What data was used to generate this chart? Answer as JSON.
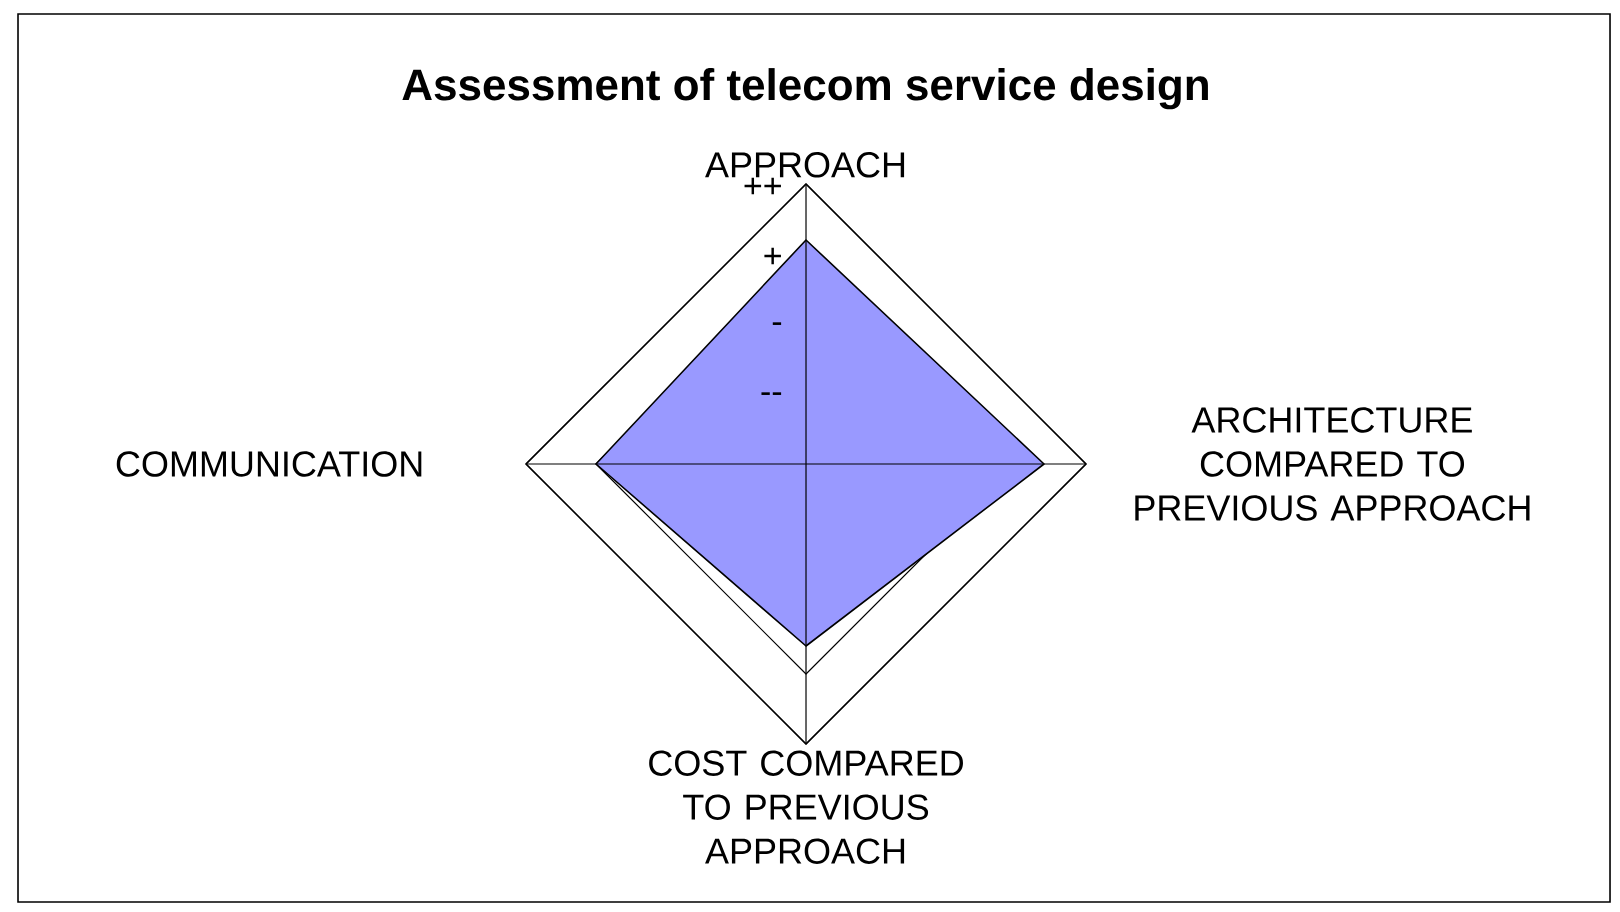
{
  "chart_data": {
    "type": "radar",
    "title": "Assessment of telecom service design",
    "categories": [
      "APPROACH",
      "ARCHITECTURE COMPARED TO PREVIOUS APPROACH",
      "COST COMPARED TO PREVIOUS APPROACH",
      "COMMUNICATION"
    ],
    "series": [
      {
        "color": "#9999ff",
        "values": [
          3.2,
          3.4,
          2.6,
          3.0
        ]
      }
    ],
    "ylim": [
      0,
      4
    ],
    "yticks": [
      {
        "value": 1,
        "label": "--"
      },
      {
        "value": 2,
        "label": "-"
      },
      {
        "value": 3,
        "label": "+"
      },
      {
        "value": 4,
        "label": "++"
      }
    ],
    "grid": true
  }
}
